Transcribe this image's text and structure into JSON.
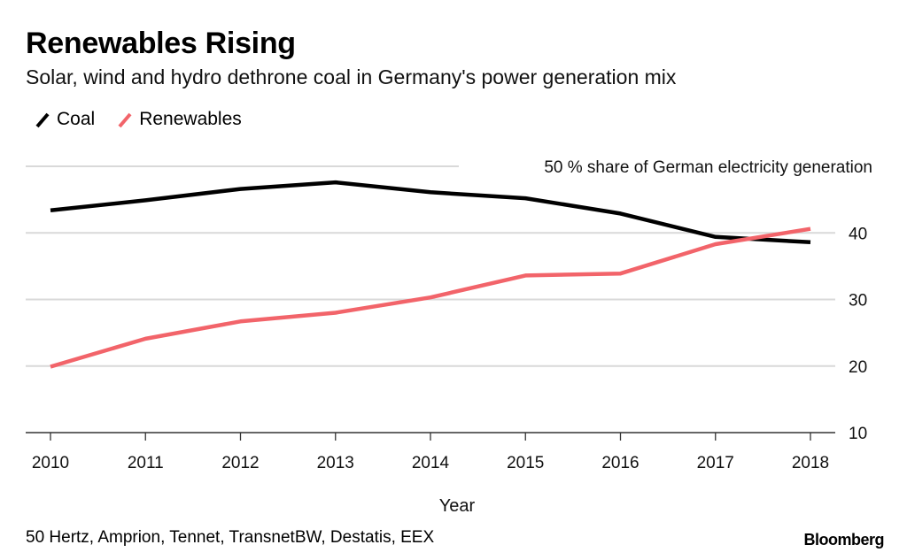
{
  "header": {
    "title": "Renewables Rising",
    "subtitle": "Solar, wind and hydro dethrone coal in Germany's power generation mix"
  },
  "footer": {
    "source": "50 Hertz, Amprion, Tennet, TransnetBW, Destatis, EEX",
    "brand": "Bloomberg"
  },
  "chart_data": {
    "type": "line",
    "title": "Renewables Rising",
    "subtitle": "Solar, wind and hydro dethrone coal in Germany's power generation mix",
    "xlabel": "Year",
    "ylabel": "",
    "x": [
      "2010",
      "2011",
      "2012",
      "2013",
      "2014",
      "2015",
      "2016",
      "2017",
      "2018"
    ],
    "ylim": [
      10,
      50
    ],
    "yticks": [
      10,
      20,
      30,
      40,
      50
    ],
    "ytick_labels": [
      "10",
      "20",
      "30",
      "40",
      "50 % share of German electricity generation"
    ],
    "y_axis_side": "right",
    "grid": true,
    "legend_position": "top-left",
    "series": [
      {
        "name": "Coal",
        "color": "#000000",
        "values": [
          43.4,
          44.9,
          46.6,
          47.6,
          46.1,
          45.2,
          42.9,
          39.4,
          38.6
        ]
      },
      {
        "name": "Renewables",
        "color": "#f2646a",
        "values": [
          19.9,
          24.1,
          26.7,
          28.0,
          30.3,
          33.6,
          33.9,
          38.3,
          40.6
        ]
      }
    ]
  }
}
